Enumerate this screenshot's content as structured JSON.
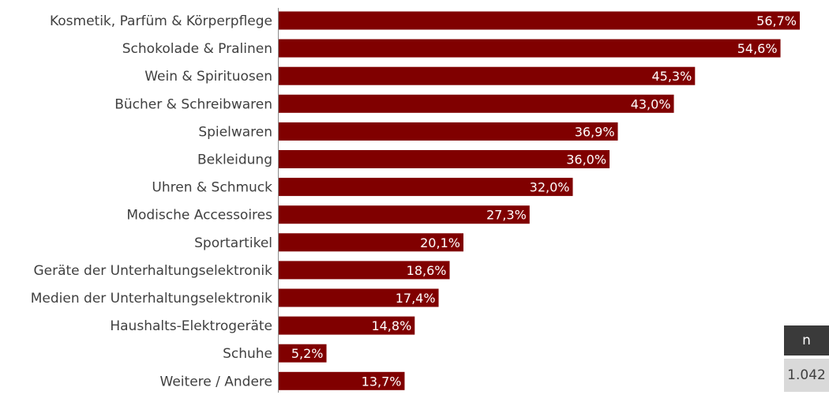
{
  "chart_data": {
    "type": "bar",
    "orientation": "horizontal",
    "categories": [
      "Kosmetik, Parfüm & Körperpflege",
      "Schokolade & Pralinen",
      "Wein & Spirituosen",
      "Bücher & Schreibwaren",
      "Spielwaren",
      "Bekleidung",
      "Uhren & Schmuck",
      "Modische Accessoires",
      "Sportartikel",
      "Geräte der Unterhaltungselektronik",
      "Medien der Unterhaltungselektronik",
      "Haushalts-Elektrogeräte",
      "Schuhe",
      "Weitere / Andere"
    ],
    "values": [
      56.7,
      54.6,
      45.3,
      43.0,
      36.9,
      36.0,
      32.0,
      27.3,
      20.1,
      18.6,
      17.4,
      14.8,
      5.2,
      13.7
    ],
    "value_labels": [
      "56,7%",
      "54,6%",
      "45,3%",
      "43,0%",
      "36,9%",
      "36,0%",
      "32,0%",
      "27,3%",
      "20,1%",
      "18,6%",
      "17,4%",
      "14,8%",
      "5,2%",
      "13,7%"
    ],
    "xlim": [
      0,
      60
    ],
    "bar_color": "#800000",
    "grid": false,
    "title": "",
    "xlabel": "",
    "ylabel": ""
  },
  "sample": {
    "header": "n",
    "value": "1.042"
  }
}
